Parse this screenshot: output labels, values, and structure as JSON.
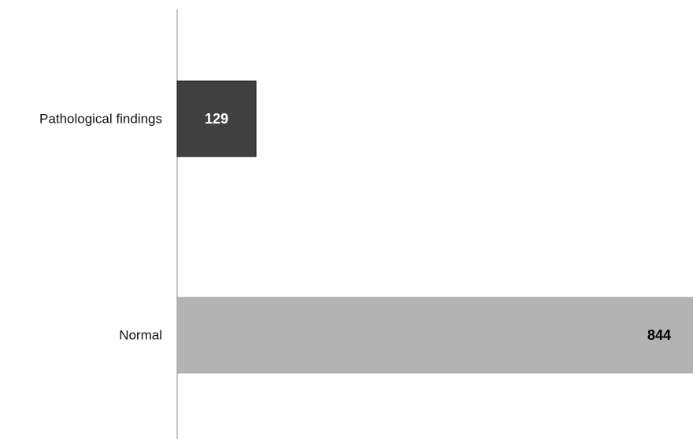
{
  "chart_data": {
    "type": "bar",
    "orientation": "horizontal",
    "categories": [
      "Pathological findings",
      "Normal"
    ],
    "values": [
      129,
      844
    ],
    "bar_colors": [
      "#404040",
      "#b3b3b3"
    ],
    "value_label_colors": [
      "#ffffff",
      "#000000"
    ],
    "axis_color": "#b0b0b0",
    "grid": false,
    "xlim": [
      0,
      844
    ]
  }
}
